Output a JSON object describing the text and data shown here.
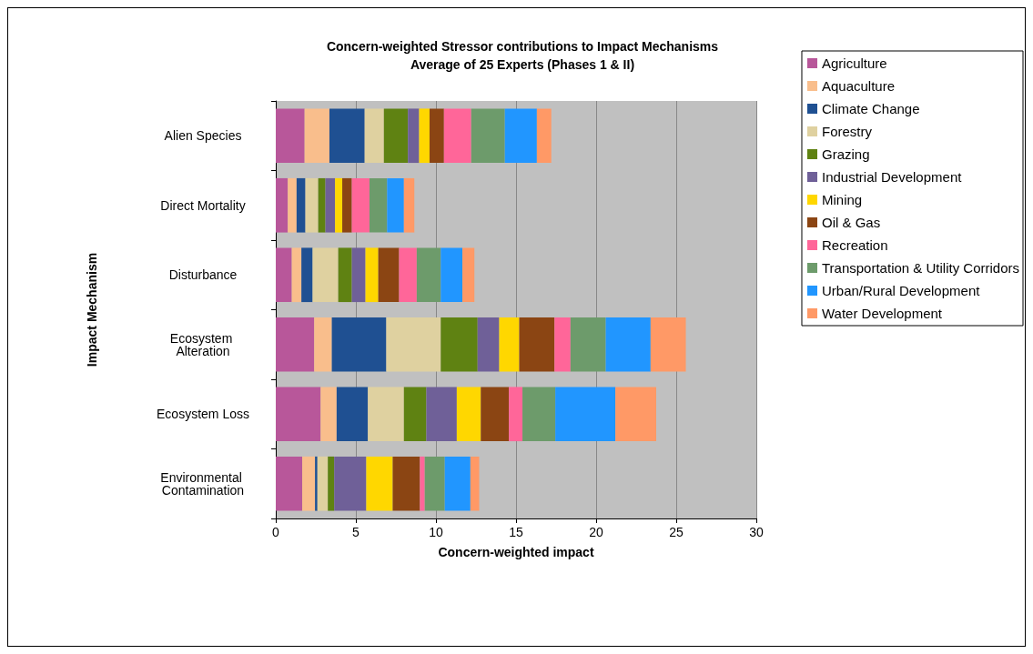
{
  "chart_data": {
    "type": "bar",
    "orientation": "horizontal",
    "stacked": true,
    "title": "Concern-weighted Stressor contributions to Impact Mechanisms",
    "subtitle": "Average of 25 Experts (Phases 1 & II)",
    "xlabel": "Concern-weighted impact",
    "ylabel": "Impact Mechanism",
    "categories": [
      "Alien Species",
      "Direct Mortality",
      "Disturbance",
      "Ecosystem Alteration",
      "Ecosystem Loss",
      "Environmental Contamination"
    ],
    "xlim": [
      0,
      30
    ],
    "xticks": [
      0,
      5,
      10,
      15,
      20,
      25,
      30
    ],
    "grid": "x",
    "legend": "top right",
    "series": [
      {
        "name": "Agriculture",
        "color": "#b8579a",
        "values": [
          1.8,
          0.75,
          1.0,
          2.4,
          2.8,
          1.65
        ]
      },
      {
        "name": "Aquaculture",
        "color": "#f9be8c",
        "values": [
          1.55,
          0.55,
          0.6,
          1.1,
          1.0,
          0.8
        ]
      },
      {
        "name": "Climate Change",
        "color": "#1f5092",
        "values": [
          2.2,
          0.55,
          0.7,
          3.4,
          1.95,
          0.15
        ]
      },
      {
        "name": "Forestry",
        "color": "#dfd1a0",
        "values": [
          1.2,
          0.8,
          1.6,
          3.4,
          2.25,
          0.65
        ]
      },
      {
        "name": "Grazing",
        "color": "#5f8212",
        "values": [
          1.5,
          0.45,
          0.85,
          2.3,
          1.4,
          0.4
        ]
      },
      {
        "name": "Industrial Development",
        "color": "#6f6098",
        "values": [
          0.7,
          0.6,
          0.85,
          1.35,
          1.9,
          2.0
        ]
      },
      {
        "name": "Mining",
        "color": "#ffd700",
        "values": [
          0.65,
          0.45,
          0.8,
          1.25,
          1.5,
          1.65
        ]
      },
      {
        "name": "Oil & Gas",
        "color": "#8b4513",
        "values": [
          0.9,
          0.6,
          1.3,
          2.2,
          1.75,
          1.7
        ]
      },
      {
        "name": "Recreation",
        "color": "#ff6699",
        "values": [
          1.7,
          1.1,
          1.1,
          1.0,
          0.85,
          0.3
        ]
      },
      {
        "name": "Transportation & Utility Corridors",
        "color": "#6d9b6b",
        "values": [
          2.1,
          1.1,
          1.5,
          2.2,
          2.05,
          1.25
        ]
      },
      {
        "name": "Urban/Rural Development",
        "color": "#2196ff",
        "values": [
          2.0,
          1.05,
          1.35,
          2.8,
          3.75,
          1.6
        ]
      },
      {
        "name": "Water Development",
        "color": "#ff9966",
        "values": [
          0.9,
          0.65,
          0.75,
          2.2,
          2.55,
          0.55
        ]
      }
    ]
  }
}
